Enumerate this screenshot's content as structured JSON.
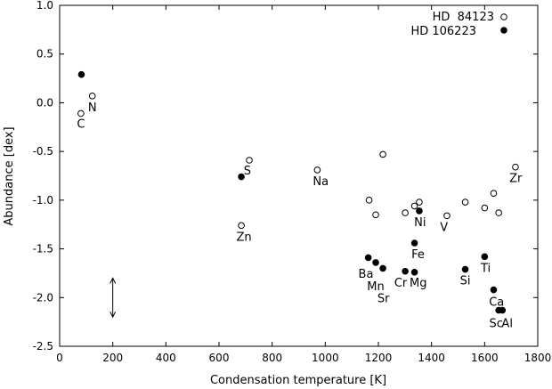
{
  "chart_data": {
    "type": "scatter",
    "title": "",
    "xlabel": "Condensation temperature [K]",
    "ylabel": "Abundance [dex]",
    "xlim": [
      0,
      1800
    ],
    "ylim": [
      -2.5,
      1.0
    ],
    "xticks": [
      0,
      200,
      400,
      600,
      800,
      1000,
      1200,
      1400,
      1600,
      1800
    ],
    "xtick_labels": [
      "0",
      "200",
      "400",
      "600",
      "800",
      "1000",
      "1200",
      "1400",
      "1600",
      "1800"
    ],
    "yticks": [
      1.0,
      0.5,
      0.0,
      -0.5,
      -1.0,
      -1.5,
      -2.0,
      -2.5
    ],
    "ytick_labels": [
      "1.0",
      "0.5",
      "0.0",
      "-0.5",
      "-1.0",
      "-1.5",
      "-2.0",
      "-2.5"
    ],
    "grid": false,
    "legend_position": "top-right",
    "series": [
      {
        "name": "HD  84123",
        "marker": "open-circle",
        "points": [
          {
            "x": 80,
            "y": -0.11
          },
          {
            "x": 123,
            "y": 0.07
          },
          {
            "x": 714,
            "y": -0.59
          },
          {
            "x": 684,
            "y": -1.26
          },
          {
            "x": 970,
            "y": -0.69
          },
          {
            "x": 1165,
            "y": -1.0
          },
          {
            "x": 1190,
            "y": -1.15
          },
          {
            "x": 1217,
            "y": -0.53
          },
          {
            "x": 1301,
            "y": -1.13
          },
          {
            "x": 1336,
            "y": -1.06
          },
          {
            "x": 1354,
            "y": -1.02
          },
          {
            "x": 1458,
            "y": -1.16
          },
          {
            "x": 1527,
            "y": -1.02
          },
          {
            "x": 1600,
            "y": -1.08
          },
          {
            "x": 1634,
            "y": -0.93
          },
          {
            "x": 1653,
            "y": -1.13
          },
          {
            "x": 1716,
            "y": -0.66
          }
        ]
      },
      {
        "name": "HD 106223",
        "marker": "filled-circle",
        "points": [
          {
            "x": 82,
            "y": 0.29
          },
          {
            "x": 684,
            "y": -0.76
          },
          {
            "x": 1162,
            "y": -1.59
          },
          {
            "x": 1190,
            "y": -1.64
          },
          {
            "x": 1217,
            "y": -1.7
          },
          {
            "x": 1301,
            "y": -1.73
          },
          {
            "x": 1336,
            "y": -1.44
          },
          {
            "x": 1336,
            "y": -1.74
          },
          {
            "x": 1354,
            "y": -1.11
          },
          {
            "x": 1527,
            "y": -1.71
          },
          {
            "x": 1600,
            "y": -1.58
          },
          {
            "x": 1634,
            "y": -1.92
          },
          {
            "x": 1653,
            "y": -2.13
          },
          {
            "x": 1667,
            "y": -2.13
          }
        ]
      }
    ],
    "annotations": [
      {
        "text": "C",
        "x": 80,
        "y": -0.21
      },
      {
        "text": "N",
        "x": 123,
        "y": -0.04
      },
      {
        "text": "S",
        "x": 707,
        "y": -0.69
      },
      {
        "text": "Zn",
        "x": 694,
        "y": -1.37
      },
      {
        "text": "Na",
        "x": 983,
        "y": -0.8
      },
      {
        "text": "Ni",
        "x": 1357,
        "y": -1.22
      },
      {
        "text": "V",
        "x": 1447,
        "y": -1.27
      },
      {
        "text": "Zr",
        "x": 1717,
        "y": -0.77
      },
      {
        "text": "Fe",
        "x": 1349,
        "y": -1.55
      },
      {
        "text": "Ti",
        "x": 1604,
        "y": -1.69
      },
      {
        "text": "Ba",
        "x": 1153,
        "y": -1.75
      },
      {
        "text": "Mn",
        "x": 1190,
        "y": -1.88
      },
      {
        "text": "Sr",
        "x": 1219,
        "y": -2.0
      },
      {
        "text": "Cr",
        "x": 1284,
        "y": -1.84
      },
      {
        "text": "Mg",
        "x": 1350,
        "y": -1.84
      },
      {
        "text": "Si",
        "x": 1527,
        "y": -1.82
      },
      {
        "text": "Ca",
        "x": 1645,
        "y": -2.04
      },
      {
        "text": "Sc",
        "x": 1643,
        "y": -2.26
      },
      {
        "text": "Al",
        "x": 1685,
        "y": -2.26
      }
    ],
    "error_bar": {
      "x": 200,
      "y_low": -2.2,
      "y_high": -1.8
    }
  }
}
